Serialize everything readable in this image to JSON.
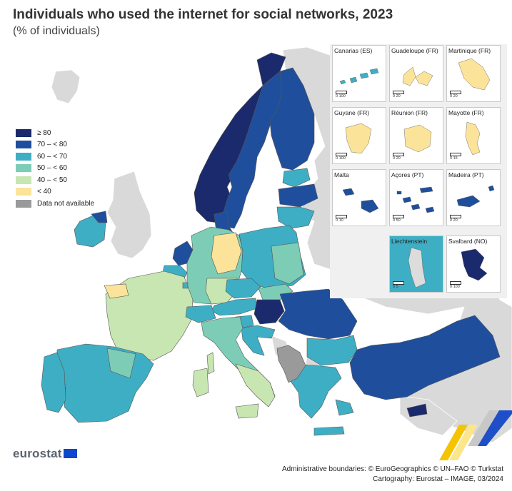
{
  "title": "Individuals who used the internet for social networks, 2023",
  "subtitle": "(% of individuals)",
  "legend": [
    {
      "label": "≥ 80",
      "color": "#1a2a6c"
    },
    {
      "label": "70 – < 80",
      "color": "#1f4f9c"
    },
    {
      "label": "60 – < 70",
      "color": "#3eaec4"
    },
    {
      "label": "50 – < 60",
      "color": "#7dcdb6"
    },
    {
      "label": "40 – < 50",
      "color": "#c8e6b1"
    },
    {
      "label": "< 40",
      "color": "#fbe49a"
    },
    {
      "label": "Data not available",
      "color": "#9a9a9a"
    }
  ],
  "map": {
    "colors": {
      "sea": "#ffffff",
      "non_eu_land": "#d9d9d9",
      "border": "#555555"
    }
  },
  "insets": [
    {
      "label": "Canarias (ES)",
      "scale": "0   100",
      "color": "#3eaec4"
    },
    {
      "label": "Guadeloupe (FR)",
      "scale": "0   20",
      "color": "#fbe49a"
    },
    {
      "label": "Martinique (FR)",
      "scale": "0   20",
      "color": "#fbe49a"
    },
    {
      "label": "Guyane (FR)",
      "scale": "0   100",
      "color": "#fbe49a"
    },
    {
      "label": "Réunion (FR)",
      "scale": "0   20",
      "color": "#fbe49a"
    },
    {
      "label": "Mayotte (FR)",
      "scale": "0   15",
      "color": "#fbe49a"
    },
    {
      "label": "Malta",
      "scale": "0   10",
      "color": "#1f4f9c"
    },
    {
      "label": "Açores (PT)",
      "scale": "0   50",
      "color": "#1f4f9c"
    },
    {
      "label": "Madeira (PT)",
      "scale": "0   20",
      "color": "#1f4f9c"
    },
    {
      "label": "Liechtenstein",
      "scale": "0   5",
      "color": "#3eaec4"
    },
    {
      "label": "Svalbard (NO)",
      "scale": "0   100",
      "color": "#1a2a6c"
    }
  ],
  "footer": {
    "brand": "eurostat",
    "credits_line1": "Administrative boundaries: © EuroGeographics © UN–FAO © Turkstat",
    "credits_line2": "Cartography: Eurostat – IMAGE, 03/2024"
  }
}
